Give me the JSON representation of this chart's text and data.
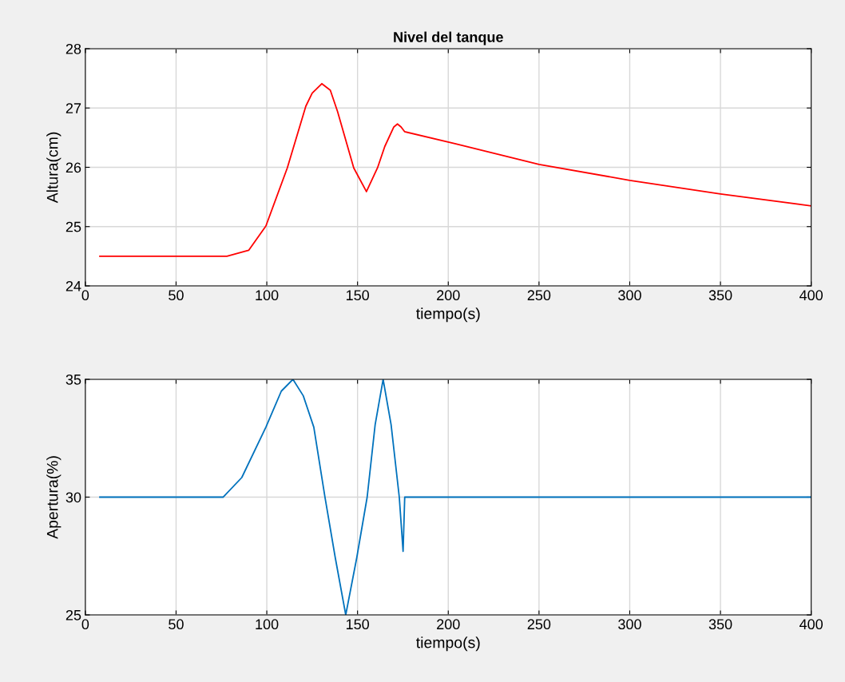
{
  "chart_data": [
    {
      "type": "line",
      "title": "Nivel del tanque",
      "xlabel": "tiempo(s)",
      "ylabel": "Altura(cm)",
      "xlim": [
        0,
        400
      ],
      "ylim": [
        24,
        28
      ],
      "xticks": [
        0,
        50,
        100,
        150,
        200,
        250,
        300,
        350,
        400
      ],
      "yticks": [
        24,
        25,
        26,
        27,
        28
      ],
      "grid": true,
      "series": [
        {
          "color": "#ff0000",
          "x": [
            8,
            78,
            90,
            99.5,
            111.3,
            121.5,
            125,
            130.3,
            135,
            139,
            147.9,
            154.9,
            161,
            165,
            170,
            172,
            174,
            176,
            203.7,
            250,
            300,
            350,
            400
          ],
          "values": [
            24.5,
            24.5,
            24.6,
            25.01,
            25.99,
            27.03,
            27.25,
            27.41,
            27.3,
            26.94,
            25.99,
            25.59,
            25.99,
            26.35,
            26.68,
            26.73,
            26.68,
            26.6,
            26.4,
            26.05,
            25.78,
            25.55,
            25.35
          ]
        }
      ]
    },
    {
      "type": "line",
      "xlabel": "tiempo(s)",
      "ylabel": "Apertura(%)",
      "xlim": [
        0,
        400
      ],
      "ylim": [
        25,
        35
      ],
      "xticks": [
        0,
        50,
        100,
        150,
        200,
        250,
        300,
        350,
        400
      ],
      "yticks": [
        25,
        30,
        35
      ],
      "grid": true,
      "series": [
        {
          "color": "#0072bd",
          "x": [
            8,
            76,
            86.2,
            99.5,
            108,
            114.4,
            120.1,
            125.9,
            132,
            137.7,
            143.5,
            149.6,
            155.3,
            159.7,
            164.1,
            168.5,
            173,
            175.1,
            176,
            400
          ],
          "values": [
            30,
            30,
            30.83,
            32.97,
            34.5,
            35,
            34.3,
            32.97,
            30.02,
            27.44,
            25,
            27.44,
            30,
            33.07,
            35,
            33.07,
            30,
            27.7,
            30,
            30
          ]
        }
      ]
    }
  ]
}
